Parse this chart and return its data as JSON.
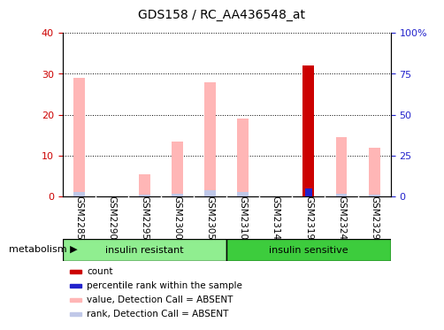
{
  "title": "GDS158 / RC_AA436548_at",
  "samples": [
    "GSM2285",
    "GSM2290",
    "GSM2295",
    "GSM2300",
    "GSM2305",
    "GSM2310",
    "GSM2314",
    "GSM2319",
    "GSM2324",
    "GSM2329"
  ],
  "groups": [
    {
      "label": "insulin resistant",
      "color": "#90ee90",
      "n_samples": 5
    },
    {
      "label": "insulin sensitive",
      "color": "#3dcc3d",
      "n_samples": 5
    }
  ],
  "group_label": "metabolism",
  "value_absent": [
    29.0,
    0.0,
    5.5,
    13.5,
    28.0,
    19.0,
    0.0,
    0.0,
    14.5,
    12.0
  ],
  "rank_absent": [
    2.5,
    0.0,
    1.2,
    1.8,
    4.0,
    2.5,
    0.0,
    0.0,
    1.8,
    1.2
  ],
  "count": [
    0.0,
    0.0,
    0.0,
    0.0,
    0.0,
    0.0,
    0.0,
    32.0,
    0.0,
    0.0
  ],
  "percentile": [
    0.0,
    0.0,
    0.0,
    0.0,
    0.0,
    0.0,
    0.0,
    5.0,
    0.0,
    0.0
  ],
  "ylim_left": [
    0,
    40
  ],
  "ylim_right": [
    0,
    100
  ],
  "yticks_left": [
    0,
    10,
    20,
    30,
    40
  ],
  "yticks_right": [
    0,
    25,
    50,
    75,
    100
  ],
  "ytick_labels_right": [
    "0",
    "25",
    "50",
    "75",
    "100%"
  ],
  "color_count": "#cc0000",
  "color_percentile": "#2222cc",
  "color_value_absent": "#ffb6b6",
  "color_rank_absent": "#c0c8e8",
  "left_tick_color": "#cc0000",
  "right_tick_color": "#2222cc",
  "bg_plot": "#ffffff",
  "bg_xticklabels": "#cccccc",
  "legend_items": [
    {
      "color": "#cc0000",
      "label": "count"
    },
    {
      "color": "#2222cc",
      "label": "percentile rank within the sample"
    },
    {
      "color": "#ffb6b6",
      "label": "value, Detection Call = ABSENT"
    },
    {
      "color": "#c0c8e8",
      "label": "rank, Detection Call = ABSENT"
    }
  ],
  "bar_width": 0.35
}
